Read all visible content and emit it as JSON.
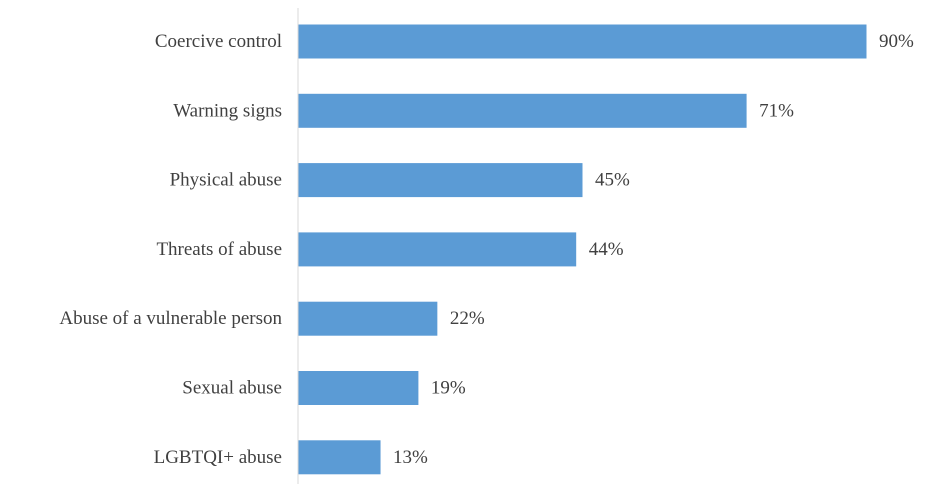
{
  "chart_data": {
    "type": "bar",
    "orientation": "horizontal",
    "categories": [
      "Coercive control",
      "Warning signs",
      "Physical abuse",
      "Threats of abuse",
      "Abuse of a vulnerable person",
      "Sexual abuse",
      "LGBTQI+ abuse"
    ],
    "values": [
      90,
      71,
      45,
      44,
      22,
      19,
      13
    ],
    "value_labels": [
      "90%",
      "71%",
      "45%",
      "44%",
      "22%",
      "19%",
      "13%"
    ],
    "unit": "%",
    "title": "",
    "xlabel": "",
    "ylabel": "",
    "xlim": [
      0,
      90
    ],
    "grid": false,
    "legend": "none",
    "bar_color": "#5b9bd5",
    "axis_color": "#d9d9d9",
    "text_color": "#404040"
  }
}
